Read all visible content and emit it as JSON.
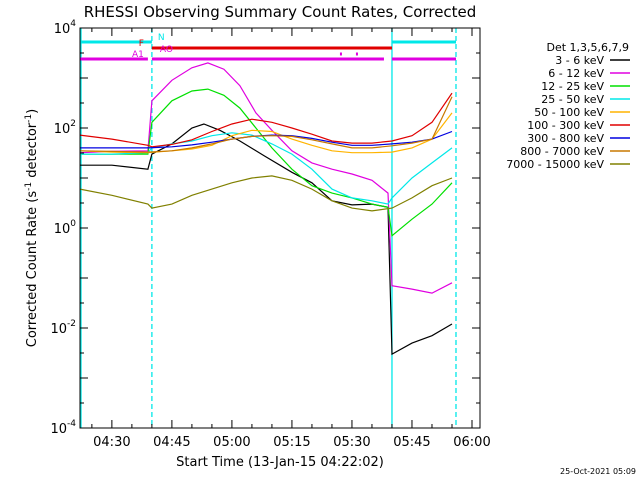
{
  "chart_data": {
    "type": "line",
    "title": "RHESSI Observing Summary Count Rates, Corrected",
    "xlabel": "Start Time (13-Jan-15 04:22:02)",
    "ylabel_main": "Corrected Count Rate (s",
    "ylabel_sup1": "-1",
    "ylabel_mid": " detector",
    "ylabel_sup2": "-1",
    "ylabel_end": ")",
    "y_scale": "log",
    "ylim": [
      0.0001,
      10000
    ],
    "xlim": [
      "04:22:02",
      "06:02:00"
    ],
    "y_ticks": [
      {
        "base": "10",
        "exp": "-4",
        "value": 0.0001
      },
      {
        "base": "10",
        "exp": "-2",
        "value": 0.01
      },
      {
        "base": "10",
        "exp": "0",
        "value": 1
      },
      {
        "base": "10",
        "exp": "2",
        "value": 100
      },
      {
        "base": "10",
        "exp": "4",
        "value": 10000
      }
    ],
    "x_ticks": [
      "04:30",
      "04:45",
      "05:00",
      "05:15",
      "05:30",
      "05:45",
      "06:00"
    ],
    "legend_title": "Det 1,3,5,6,7,9",
    "legend_placement": "right",
    "series": [
      {
        "name": "3 - 6 keV",
        "color": "#000000",
        "points": [
          [
            "04:22",
            18
          ],
          [
            "04:30",
            18
          ],
          [
            "04:39",
            15
          ],
          [
            "04:40",
            30
          ],
          [
            "04:45",
            48
          ],
          [
            "04:50",
            100
          ],
          [
            "04:53",
            120
          ],
          [
            "04:57",
            90
          ],
          [
            "05:02",
            55
          ],
          [
            "05:08",
            28
          ],
          [
            "05:15",
            13
          ],
          [
            "05:20",
            8
          ],
          [
            "05:25",
            3.5
          ],
          [
            "05:30",
            2.9
          ],
          [
            "05:35",
            3.0
          ],
          [
            "05:39",
            2.6
          ],
          [
            "05:40",
            0.003
          ],
          [
            "05:45",
            0.005
          ],
          [
            "05:50",
            0.007
          ],
          [
            "05:55",
            0.012
          ]
        ]
      },
      {
        "name": "6 - 12 keV",
        "color": "#e000e0",
        "points": [
          [
            "04:22",
            32
          ],
          [
            "04:30",
            34
          ],
          [
            "04:39",
            35
          ],
          [
            "04:40",
            350
          ],
          [
            "04:45",
            900
          ],
          [
            "04:50",
            1600
          ],
          [
            "04:54",
            2000
          ],
          [
            "04:58",
            1500
          ],
          [
            "05:02",
            700
          ],
          [
            "05:06",
            200
          ],
          [
            "05:10",
            90
          ],
          [
            "05:15",
            35
          ],
          [
            "05:20",
            20
          ],
          [
            "05:25",
            15
          ],
          [
            "05:30",
            12
          ],
          [
            "05:35",
            9
          ],
          [
            "05:39",
            5
          ],
          [
            "05:40",
            0.07
          ],
          [
            "05:45",
            0.06
          ],
          [
            "05:50",
            0.05
          ],
          [
            "05:55",
            0.08
          ]
        ]
      },
      {
        "name": "12 - 25 keV",
        "color": "#00e000",
        "points": [
          [
            "04:22",
            30
          ],
          [
            "04:30",
            30
          ],
          [
            "04:39",
            30
          ],
          [
            "04:40",
            130
          ],
          [
            "04:45",
            350
          ],
          [
            "04:50",
            550
          ],
          [
            "04:54",
            600
          ],
          [
            "04:58",
            450
          ],
          [
            "05:02",
            250
          ],
          [
            "05:06",
            100
          ],
          [
            "05:10",
            40
          ],
          [
            "05:15",
            15
          ],
          [
            "05:20",
            7
          ],
          [
            "05:25",
            5
          ],
          [
            "05:30",
            4
          ],
          [
            "05:35",
            3
          ],
          [
            "05:39",
            2.6
          ],
          [
            "05:40",
            0.7
          ],
          [
            "05:45",
            1.5
          ],
          [
            "05:50",
            3
          ],
          [
            "05:55",
            8
          ]
        ]
      },
      {
        "name": "25 - 50 keV",
        "color": "#00e8e8",
        "points": [
          [
            "04:22",
            30
          ],
          [
            "04:30",
            30
          ],
          [
            "04:39",
            32
          ],
          [
            "04:40",
            40
          ],
          [
            "04:45",
            48
          ],
          [
            "04:50",
            55
          ],
          [
            "04:55",
            70
          ],
          [
            "05:00",
            80
          ],
          [
            "05:05",
            72
          ],
          [
            "05:10",
            48
          ],
          [
            "05:15",
            30
          ],
          [
            "05:20",
            15
          ],
          [
            "05:25",
            6
          ],
          [
            "05:30",
            4
          ],
          [
            "05:35",
            3.5
          ],
          [
            "05:39",
            3
          ],
          [
            "05:40",
            4
          ],
          [
            "05:45",
            10
          ],
          [
            "05:50",
            20
          ],
          [
            "05:55",
            40
          ]
        ]
      },
      {
        "name": "50 - 100 keV",
        "color": "#ffb400",
        "points": [
          [
            "04:22",
            35
          ],
          [
            "04:30",
            33
          ],
          [
            "04:39",
            32
          ],
          [
            "04:45",
            35
          ],
          [
            "04:50",
            38
          ],
          [
            "04:55",
            45
          ],
          [
            "05:00",
            70
          ],
          [
            "05:05",
            90
          ],
          [
            "05:10",
            85
          ],
          [
            "05:15",
            60
          ],
          [
            "05:20",
            45
          ],
          [
            "05:25",
            35
          ],
          [
            "05:30",
            32
          ],
          [
            "05:35",
            32
          ],
          [
            "05:40",
            33
          ],
          [
            "05:45",
            40
          ],
          [
            "05:50",
            60
          ],
          [
            "05:55",
            200
          ]
        ]
      },
      {
        "name": "100 - 300 keV",
        "color": "#e00000",
        "points": [
          [
            "04:22",
            72
          ],
          [
            "04:30",
            60
          ],
          [
            "04:39",
            45
          ],
          [
            "04:40",
            42
          ],
          [
            "04:45",
            47
          ],
          [
            "04:50",
            58
          ],
          [
            "04:55",
            85
          ],
          [
            "05:00",
            120
          ],
          [
            "05:05",
            150
          ],
          [
            "05:10",
            130
          ],
          [
            "05:15",
            100
          ],
          [
            "05:20",
            75
          ],
          [
            "05:25",
            55
          ],
          [
            "05:30",
            50
          ],
          [
            "05:35",
            50
          ],
          [
            "05:40",
            55
          ],
          [
            "05:45",
            70
          ],
          [
            "05:50",
            130
          ],
          [
            "05:55",
            500
          ]
        ]
      },
      {
        "name": "300 - 800 keV",
        "color": "#0000e0",
        "points": [
          [
            "04:22",
            40
          ],
          [
            "04:30",
            40
          ],
          [
            "04:39",
            40
          ],
          [
            "04:45",
            42
          ],
          [
            "04:50",
            46
          ],
          [
            "04:55",
            52
          ],
          [
            "05:00",
            60
          ],
          [
            "05:05",
            68
          ],
          [
            "05:10",
            72
          ],
          [
            "05:15",
            70
          ],
          [
            "05:20",
            62
          ],
          [
            "05:25",
            52
          ],
          [
            "05:30",
            45
          ],
          [
            "05:35",
            45
          ],
          [
            "05:40",
            48
          ],
          [
            "05:45",
            52
          ],
          [
            "05:50",
            60
          ],
          [
            "05:55",
            85
          ]
        ]
      },
      {
        "name": "800 - 7000 keV",
        "color": "#c87800",
        "points": [
          [
            "04:22",
            35
          ],
          [
            "04:30",
            34
          ],
          [
            "04:39",
            33
          ],
          [
            "04:45",
            35
          ],
          [
            "04:50",
            40
          ],
          [
            "04:55",
            48
          ],
          [
            "05:00",
            60
          ],
          [
            "05:05",
            68
          ],
          [
            "05:10",
            70
          ],
          [
            "05:15",
            68
          ],
          [
            "05:20",
            58
          ],
          [
            "05:25",
            48
          ],
          [
            "05:30",
            40
          ],
          [
            "05:35",
            40
          ],
          [
            "05:40",
            44
          ],
          [
            "05:45",
            50
          ],
          [
            "05:50",
            60
          ],
          [
            "05:55",
            420
          ]
        ]
      },
      {
        "name": "7000 - 15000 keV",
        "color": "#808000",
        "points": [
          [
            "04:22",
            6
          ],
          [
            "04:30",
            4.5
          ],
          [
            "04:39",
            3
          ],
          [
            "04:40",
            2.5
          ],
          [
            "04:45",
            3
          ],
          [
            "04:50",
            4.5
          ],
          [
            "04:55",
            6
          ],
          [
            "05:00",
            8
          ],
          [
            "05:05",
            10
          ],
          [
            "05:10",
            11
          ],
          [
            "05:15",
            9
          ],
          [
            "05:20",
            6
          ],
          [
            "05:25",
            3.5
          ],
          [
            "05:30",
            2.5
          ],
          [
            "05:35",
            2.2
          ],
          [
            "05:40",
            2.5
          ],
          [
            "05:45",
            4
          ],
          [
            "05:50",
            7
          ],
          [
            "05:55",
            10
          ]
        ]
      }
    ],
    "flags": [
      {
        "label": "N",
        "color": "#00e8e8",
        "segments": [
          [
            "04:22:02",
            "04:40"
          ],
          [
            "05:40",
            "05:56"
          ]
        ]
      },
      {
        "label": "F",
        "color": "#e00000",
        "segments": [
          [
            "04:40",
            "05:40"
          ]
        ]
      },
      {
        "label": "AO",
        "color": "#e000e0",
        "segments": [
          [
            "05:27",
            "05:27:30"
          ],
          [
            "05:31",
            "05:31:30"
          ]
        ]
      },
      {
        "label": "A1",
        "color": "#e000e0",
        "segments": [
          [
            "04:22:02",
            "04:39"
          ],
          [
            "04:40",
            "05:38"
          ],
          [
            "05:40",
            "05:56"
          ]
        ]
      }
    ],
    "night_boundaries": [
      "04:40",
      "05:40",
      "05:56"
    ]
  },
  "footer": {
    "timestamp": "25-Oct-2021 05:09"
  }
}
